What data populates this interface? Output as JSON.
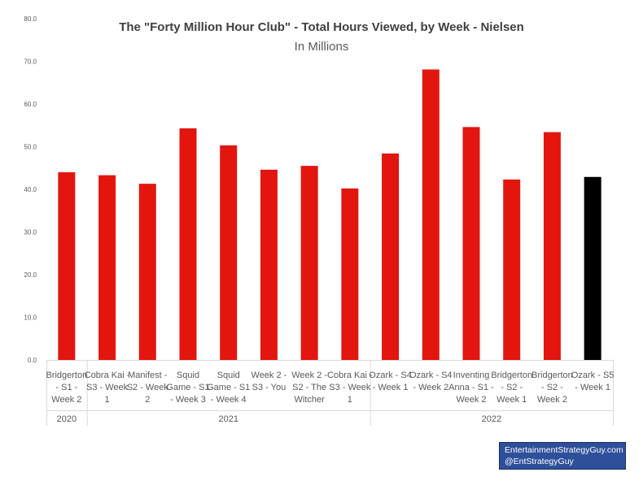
{
  "chart_data": {
    "type": "bar",
    "title": "The \"Forty Million Hour Club\" - Total Hours Viewed, by Week - Nielsen",
    "subtitle": "In Millions",
    "ylim": [
      0,
      80
    ],
    "yticks": [
      "0.0",
      "10.0",
      "20.0",
      "30.0",
      "40.0",
      "50.0",
      "60.0",
      "70.0",
      "80.0"
    ],
    "grid": false,
    "categories": [
      [
        "Bridgerton",
        "- S1 -",
        "Week 2"
      ],
      [
        "Cobra Kai -",
        "S3 - Week",
        "1"
      ],
      [
        "Manifest -",
        "S2 - Week",
        "2"
      ],
      [
        "Squid",
        "Game - S1",
        "- Week 3"
      ],
      [
        "Squid",
        "Game - S1",
        "- Week 4"
      ],
      [
        "Week 2 -",
        "S3 - You"
      ],
      [
        "Week 2 -",
        "S2 - The",
        "Witcher"
      ],
      [
        "Cobra Kai -",
        "S3 - Week",
        "1"
      ],
      [
        "Ozark - S4",
        "- Week 1"
      ],
      [
        "Ozark - S4",
        "- Week 2"
      ],
      [
        "Inventing",
        "Anna - S1 -",
        "Week 2"
      ],
      [
        "Bridgerton",
        "- S2 -",
        "Week 1"
      ],
      [
        "Bridgerton",
        "- S2 -",
        "Week 2"
      ],
      [
        "Ozark - S5",
        "- Week 1"
      ]
    ],
    "values": [
      44.0,
      43.3,
      41.3,
      54.3,
      50.3,
      44.6,
      45.5,
      40.2,
      48.4,
      68.1,
      54.6,
      42.3,
      53.4,
      42.9
    ],
    "colors": [
      "#e3150f",
      "#e3150f",
      "#e3150f",
      "#e3150f",
      "#e3150f",
      "#e3150f",
      "#e3150f",
      "#e3150f",
      "#e3150f",
      "#e3150f",
      "#e3150f",
      "#e3150f",
      "#e3150f",
      "#000000"
    ],
    "year_groups": [
      {
        "label": "2020",
        "start": 0,
        "end": 0
      },
      {
        "label": "2021",
        "start": 1,
        "end": 7
      },
      {
        "label": "2022",
        "start": 8,
        "end": 13
      }
    ]
  },
  "watermark": {
    "line1": "EntertainmentStrategyGuy.com",
    "line2": "@EntStrategyGuy"
  }
}
